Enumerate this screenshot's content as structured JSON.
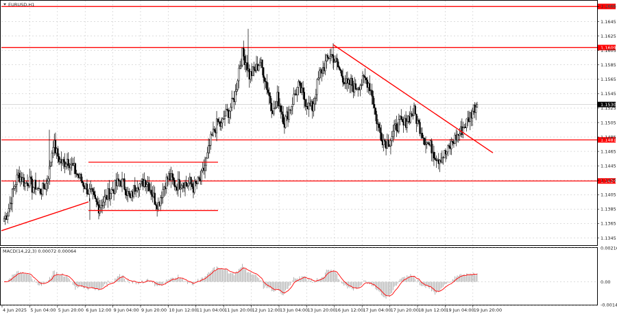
{
  "chart_data": [
    {
      "type": "candlestick",
      "title": "EURUSD,H1",
      "symbol": "EURUSD",
      "timeframe": "H1",
      "ylim": [
        1.1335,
        1.1674
      ],
      "y_ticks": [
        "1.1666",
        "1.1645",
        "1.1625",
        "1.1605",
        "1.1585",
        "1.1565",
        "1.1545",
        "1.1525",
        "1.1505",
        "1.1485",
        "1.1465",
        "1.1445",
        "1.1425",
        "1.1405",
        "1.1385",
        "1.1365",
        "1.1345"
      ],
      "x_ticks": [
        "4 Jun 2025",
        "5 Jun 04:00",
        "5 Jun 20:00",
        "6 Jun 12:00",
        "9 Jun 04:00",
        "9 Jun 20:00",
        "10 Jun 12:00",
        "11 Jun 04:00",
        "11 Jun 20:00",
        "12 Jun 12:00",
        "13 Jun 04:00",
        "13 Jun 20:00",
        "16 Jun 12:00",
        "17 Jun 04:00",
        "17 Jun 20:00",
        "18 Jun 12:00",
        "19 Jun 04:00",
        "19 Jun 20:00"
      ],
      "grid": true,
      "current_price": "1.1530",
      "levels": [
        {
          "value": 1.1666,
          "label": "1.1666",
          "color": "#ff0000"
        },
        {
          "value": 1.1609,
          "label": "1.1609",
          "color": "#ff0000"
        },
        {
          "value": 1.1481,
          "label": "1.1481",
          "color": "#ff0000"
        },
        {
          "value": 1.1424,
          "label": "1.1424",
          "color": "#ff0000"
        }
      ],
      "range_box": {
        "top": 1.145,
        "bottom": 1.1383,
        "from": "6 Jun",
        "to": "11 Jun"
      },
      "trendlines": [
        {
          "name": "ascending",
          "from": [
            "4 Jun 2025",
            1.1355
          ],
          "to": [
            "6 Jun 12:00",
            1.1395
          ]
        },
        {
          "name": "descending",
          "from": [
            "16 Jun 12:00",
            1.1613
          ],
          "to": [
            "20 Jun",
            1.1463
          ]
        }
      ],
      "closes": [
        1.1372,
        1.138,
        1.14,
        1.1418,
        1.1432,
        1.1428,
        1.142,
        1.1425,
        1.1415,
        1.1418,
        1.141,
        1.1412,
        1.142,
        1.144,
        1.1478,
        1.1462,
        1.1452,
        1.1448,
        1.1455,
        1.1448,
        1.144,
        1.1432,
        1.1425,
        1.1418,
        1.141,
        1.1405,
        1.1395,
        1.1388,
        1.1395,
        1.14,
        1.1408,
        1.1412,
        1.1418,
        1.1425,
        1.142,
        1.141,
        1.1398,
        1.1412,
        1.1422,
        1.1418,
        1.1425,
        1.1422,
        1.141,
        1.1398,
        1.1392,
        1.1408,
        1.1422,
        1.143,
        1.1425,
        1.1418,
        1.142,
        1.1425,
        1.1418,
        1.1422,
        1.1415,
        1.142,
        1.1425,
        1.144,
        1.1458,
        1.148,
        1.1495,
        1.1505,
        1.15,
        1.1515,
        1.152,
        1.153,
        1.1545,
        1.158,
        1.16,
        1.159,
        1.157,
        1.1575,
        1.158,
        1.159,
        1.1575,
        1.1555,
        1.1535,
        1.152,
        1.154,
        1.1525,
        1.1505,
        1.1518,
        1.153,
        1.1545,
        1.1555,
        1.1545,
        1.1535,
        1.1528,
        1.1525,
        1.155,
        1.1572,
        1.158,
        1.159,
        1.16,
        1.1595,
        1.1585,
        1.1575,
        1.1565,
        1.1555,
        1.156,
        1.1552,
        1.1558,
        1.156,
        1.1565,
        1.156,
        1.1545,
        1.1515,
        1.1495,
        1.1483,
        1.1478,
        1.148,
        1.149,
        1.15,
        1.1505,
        1.15,
        1.151,
        1.1515,
        1.152,
        1.1505,
        1.1495,
        1.1482,
        1.1475,
        1.147,
        1.146,
        1.1455,
        1.1458,
        1.1462,
        1.1468,
        1.1478,
        1.1485,
        1.149,
        1.1498,
        1.1505,
        1.1515,
        1.1525,
        1.153
      ],
      "current_time_label": "19 Jun 20:00"
    },
    {
      "type": "histogram",
      "title": "MACD(14,22,3) 0.00072 0.00064",
      "indicator": "MACD",
      "params": "14,22,3",
      "main_value": 0.00072,
      "signal_value": 0.00064,
      "ylim": [
        -0.00146,
        0.00216
      ],
      "y_ticks": [
        "0.00216",
        "0.00",
        "-0.00146"
      ],
      "hist_color": "#a0a0a0",
      "signal_color": "#ff0000"
    }
  ]
}
